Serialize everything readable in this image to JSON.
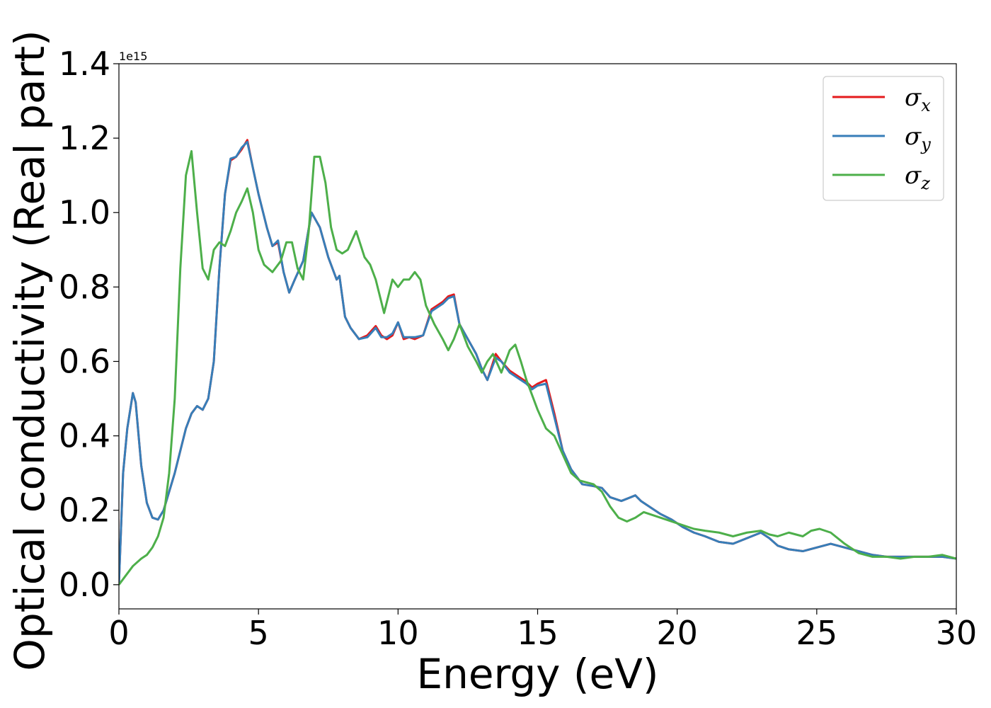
{
  "chart_data": {
    "type": "line",
    "title": "",
    "xlabel": "Energy (eV)",
    "ylabel": "Optical conductivity (Real part)",
    "y_offset_label": "1e15",
    "xlim": [
      0,
      30
    ],
    "ylim": [
      -0.065,
      1.4
    ],
    "xticks": [
      0,
      5,
      10,
      15,
      20,
      25,
      30
    ],
    "xtick_labels": [
      "0",
      "5",
      "10",
      "15",
      "20",
      "25",
      "30"
    ],
    "yticks": [
      0.0,
      0.2,
      0.4,
      0.6,
      0.8,
      1.0,
      1.2,
      1.4
    ],
    "ytick_labels": [
      "0.0",
      "0.2",
      "0.4",
      "0.6",
      "0.8",
      "1.0",
      "1.2",
      "1.4"
    ],
    "grid": false,
    "legend_position": "top-right",
    "series": [
      {
        "name": "σx",
        "symbol": "σ",
        "subscript": "x",
        "color": "#e41a1c",
        "x": [
          0,
          0.15,
          0.3,
          0.5,
          0.6,
          0.8,
          1.0,
          1.2,
          1.4,
          1.6,
          1.8,
          2.0,
          2.2,
          2.4,
          2.6,
          2.8,
          3.0,
          3.2,
          3.4,
          3.6,
          3.8,
          4.0,
          4.2,
          4.4,
          4.6,
          4.8,
          5.0,
          5.3,
          5.5,
          5.7,
          5.9,
          6.1,
          6.3,
          6.6,
          6.9,
          7.2,
          7.5,
          7.8,
          7.9,
          8.1,
          8.3,
          8.6,
          8.9,
          9.2,
          9.4,
          9.6,
          9.8,
          10.0,
          10.2,
          10.4,
          10.6,
          10.9,
          11.2,
          11.4,
          11.6,
          11.8,
          12.0,
          12.2,
          12.5,
          12.8,
          13.0,
          13.2,
          13.5,
          13.7,
          14.0,
          14.3,
          14.6,
          14.8,
          15.0,
          15.3,
          15.6,
          15.9,
          16.2,
          16.6,
          17.0,
          17.3,
          17.6,
          18.0,
          18.5,
          18.7,
          19.0,
          19.4,
          19.8,
          20.2,
          20.6,
          21.0,
          21.5,
          22.0,
          22.5,
          23.0,
          23.3,
          23.6,
          24.0,
          24.5,
          25.0,
          25.5,
          26.0,
          26.5,
          27.0,
          27.5,
          28.0,
          28.5,
          29.0,
          29.5,
          30.0
        ],
        "y": [
          0.0,
          0.3,
          0.42,
          0.515,
          0.49,
          0.32,
          0.22,
          0.18,
          0.175,
          0.2,
          0.25,
          0.3,
          0.36,
          0.42,
          0.46,
          0.48,
          0.47,
          0.5,
          0.6,
          0.85,
          1.05,
          1.14,
          1.15,
          1.17,
          1.195,
          1.12,
          1.05,
          0.96,
          0.91,
          0.92,
          0.84,
          0.785,
          0.82,
          0.87,
          1.0,
          0.96,
          0.88,
          0.82,
          0.83,
          0.72,
          0.69,
          0.66,
          0.67,
          0.695,
          0.67,
          0.66,
          0.67,
          0.705,
          0.66,
          0.665,
          0.66,
          0.67,
          0.74,
          0.75,
          0.76,
          0.775,
          0.78,
          0.7,
          0.66,
          0.62,
          0.58,
          0.55,
          0.62,
          0.6,
          0.575,
          0.56,
          0.545,
          0.53,
          0.54,
          0.55,
          0.46,
          0.36,
          0.31,
          0.27,
          0.265,
          0.26,
          0.235,
          0.225,
          0.24,
          0.225,
          0.21,
          0.19,
          0.175,
          0.155,
          0.14,
          0.13,
          0.115,
          0.11,
          0.125,
          0.14,
          0.125,
          0.105,
          0.095,
          0.09,
          0.1,
          0.11,
          0.1,
          0.09,
          0.08,
          0.075,
          0.075,
          0.075,
          0.075,
          0.075,
          0.07
        ]
      },
      {
        "name": "σy",
        "symbol": "σ",
        "subscript": "y",
        "color": "#377eb8",
        "x": [
          0,
          0.15,
          0.3,
          0.5,
          0.6,
          0.8,
          1.0,
          1.2,
          1.4,
          1.6,
          1.8,
          2.0,
          2.2,
          2.4,
          2.6,
          2.8,
          3.0,
          3.2,
          3.4,
          3.6,
          3.8,
          4.0,
          4.2,
          4.4,
          4.6,
          4.8,
          5.0,
          5.3,
          5.5,
          5.7,
          5.9,
          6.1,
          6.3,
          6.6,
          6.9,
          7.2,
          7.5,
          7.8,
          7.9,
          8.1,
          8.3,
          8.6,
          8.9,
          9.2,
          9.4,
          9.6,
          9.8,
          10.0,
          10.2,
          10.4,
          10.6,
          10.9,
          11.2,
          11.4,
          11.6,
          11.8,
          12.0,
          12.2,
          12.5,
          12.8,
          13.0,
          13.2,
          13.5,
          13.7,
          14.0,
          14.3,
          14.6,
          14.8,
          15.0,
          15.3,
          15.6,
          15.9,
          16.2,
          16.6,
          17.0,
          17.3,
          17.6,
          18.0,
          18.5,
          18.7,
          19.0,
          19.4,
          19.8,
          20.2,
          20.6,
          21.0,
          21.5,
          22.0,
          22.5,
          23.0,
          23.3,
          23.6,
          24.0,
          24.5,
          25.0,
          25.5,
          26.0,
          26.5,
          27.0,
          27.5,
          28.0,
          28.5,
          29.0,
          29.5,
          30.0
        ],
        "y": [
          0.0,
          0.3,
          0.42,
          0.515,
          0.49,
          0.32,
          0.22,
          0.18,
          0.175,
          0.2,
          0.25,
          0.3,
          0.36,
          0.42,
          0.46,
          0.48,
          0.47,
          0.5,
          0.6,
          0.85,
          1.05,
          1.145,
          1.15,
          1.175,
          1.19,
          1.12,
          1.05,
          0.96,
          0.91,
          0.925,
          0.84,
          0.785,
          0.82,
          0.87,
          1.0,
          0.96,
          0.88,
          0.82,
          0.83,
          0.72,
          0.69,
          0.66,
          0.665,
          0.69,
          0.665,
          0.665,
          0.675,
          0.705,
          0.665,
          0.665,
          0.665,
          0.67,
          0.735,
          0.745,
          0.755,
          0.77,
          0.775,
          0.7,
          0.66,
          0.62,
          0.58,
          0.55,
          0.61,
          0.6,
          0.57,
          0.555,
          0.54,
          0.525,
          0.535,
          0.54,
          0.45,
          0.36,
          0.31,
          0.27,
          0.265,
          0.26,
          0.235,
          0.225,
          0.24,
          0.225,
          0.21,
          0.19,
          0.175,
          0.155,
          0.14,
          0.13,
          0.115,
          0.11,
          0.125,
          0.14,
          0.125,
          0.105,
          0.095,
          0.09,
          0.1,
          0.11,
          0.1,
          0.09,
          0.08,
          0.075,
          0.075,
          0.075,
          0.075,
          0.075,
          0.07
        ]
      },
      {
        "name": "σz",
        "symbol": "σ",
        "subscript": "z",
        "color": "#4daf4a",
        "x": [
          0,
          0.2,
          0.5,
          0.8,
          1.0,
          1.2,
          1.4,
          1.6,
          1.8,
          2.0,
          2.2,
          2.4,
          2.6,
          2.8,
          3.0,
          3.2,
          3.4,
          3.6,
          3.8,
          4.0,
          4.2,
          4.4,
          4.6,
          4.8,
          5.0,
          5.2,
          5.5,
          5.8,
          6.0,
          6.2,
          6.4,
          6.6,
          6.8,
          7.0,
          7.2,
          7.4,
          7.6,
          7.8,
          8.0,
          8.2,
          8.5,
          8.8,
          9.0,
          9.2,
          9.5,
          9.8,
          10.0,
          10.2,
          10.4,
          10.6,
          10.8,
          11.0,
          11.3,
          11.6,
          11.8,
          12.0,
          12.2,
          12.5,
          12.8,
          13.0,
          13.2,
          13.4,
          13.7,
          14.0,
          14.2,
          14.4,
          14.6,
          14.8,
          15.0,
          15.3,
          15.6,
          15.9,
          16.2,
          16.5,
          17.0,
          17.3,
          17.6,
          17.9,
          18.2,
          18.5,
          18.8,
          19.0,
          19.4,
          19.8,
          20.2,
          20.6,
          21.0,
          21.5,
          22.0,
          22.5,
          23.0,
          23.3,
          23.6,
          24.0,
          24.5,
          24.8,
          25.1,
          25.5,
          26.0,
          26.5,
          27.0,
          27.5,
          28.0,
          28.5,
          29.0,
          29.5,
          30.0
        ],
        "y": [
          0.0,
          0.02,
          0.05,
          0.07,
          0.08,
          0.1,
          0.13,
          0.18,
          0.3,
          0.5,
          0.85,
          1.1,
          1.165,
          1.0,
          0.85,
          0.82,
          0.9,
          0.92,
          0.91,
          0.95,
          1.0,
          1.03,
          1.065,
          1.0,
          0.9,
          0.86,
          0.84,
          0.87,
          0.92,
          0.92,
          0.85,
          0.82,
          0.95,
          1.15,
          1.15,
          1.08,
          0.96,
          0.9,
          0.89,
          0.9,
          0.95,
          0.88,
          0.86,
          0.82,
          0.73,
          0.82,
          0.8,
          0.82,
          0.82,
          0.84,
          0.82,
          0.75,
          0.7,
          0.66,
          0.63,
          0.66,
          0.7,
          0.64,
          0.6,
          0.57,
          0.6,
          0.62,
          0.57,
          0.63,
          0.645,
          0.6,
          0.55,
          0.51,
          0.47,
          0.42,
          0.4,
          0.35,
          0.3,
          0.28,
          0.27,
          0.25,
          0.21,
          0.18,
          0.17,
          0.18,
          0.195,
          0.19,
          0.18,
          0.17,
          0.16,
          0.15,
          0.145,
          0.14,
          0.13,
          0.14,
          0.145,
          0.135,
          0.13,
          0.14,
          0.13,
          0.145,
          0.15,
          0.14,
          0.11,
          0.085,
          0.075,
          0.075,
          0.07,
          0.075,
          0.075,
          0.08,
          0.07
        ]
      }
    ]
  }
}
